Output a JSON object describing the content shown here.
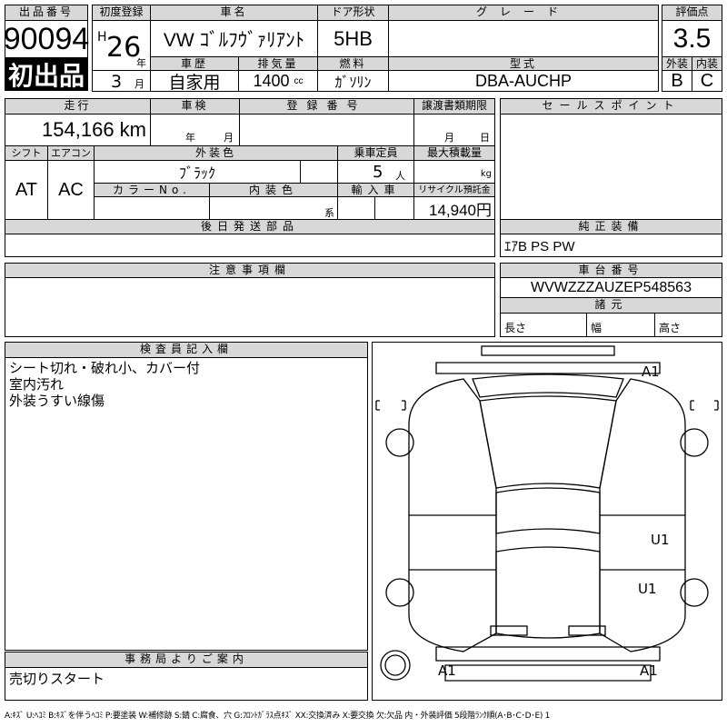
{
  "lot": {
    "label": "出品番号",
    "number": "90094",
    "badge": "初出品"
  },
  "first_reg": {
    "label": "初度登録",
    "era": "H",
    "year": "26",
    "year_unit": "年",
    "month": "3",
    "month_unit": "月"
  },
  "car_name": {
    "label": "車名",
    "value": "VW ｺﾞﾙﾌｳﾞｧﾘｱﾝﾄ"
  },
  "door": {
    "label": "ドア形状",
    "value": "5HB"
  },
  "grade": {
    "label": "グレード",
    "value": ""
  },
  "history": {
    "label": "車歴",
    "value": "自家用"
  },
  "displacement": {
    "label": "排気量",
    "value": "1400",
    "unit": "cc"
  },
  "fuel": {
    "label": "燃料",
    "value": "ｶﾞｿﾘﾝ"
  },
  "model": {
    "label": "型式",
    "value": "DBA-AUCHP"
  },
  "score": {
    "label": "評価点",
    "value": "3.5",
    "exterior_label": "外装",
    "interior_label": "内装",
    "exterior": "B",
    "interior": "C"
  },
  "mileage": {
    "label": "走行",
    "value": "154,166 km"
  },
  "inspection": {
    "label": "車検",
    "year_unit": "年",
    "month_unit": "月"
  },
  "reg_number": {
    "label": "登録番号"
  },
  "transfer": {
    "label": "譲渡書類期限",
    "month_unit": "月",
    "day_unit": "日"
  },
  "shift": {
    "label": "シフト",
    "value": "AT"
  },
  "aircon": {
    "label": "エアコン",
    "value": "AC"
  },
  "ext_color": {
    "label": "外装色",
    "value": "ﾌﾞﾗｯｸ"
  },
  "capacity": {
    "label": "乗車定員",
    "value": "5",
    "unit": "人"
  },
  "max_load": {
    "label": "最大積載量",
    "unit": "kg"
  },
  "color_no": {
    "label": "カラーNo."
  },
  "int_color": {
    "label": "内装色",
    "unit": "系"
  },
  "import": {
    "label": "輸入車"
  },
  "recycle": {
    "label": "リサイクル預託金",
    "value": "14,940円"
  },
  "later_parts": {
    "label": "後日発送部品"
  },
  "sales_point": {
    "label": "セールスポイント"
  },
  "equipment": {
    "label": "純正装備",
    "value": "ｴｱB PS PW"
  },
  "notes": {
    "label": "注意事項欄"
  },
  "chassis": {
    "label": "車台番号",
    "value": "WVWZZZAUZEP548563"
  },
  "specs": {
    "label": "諸元",
    "length": "長さ",
    "width": "幅",
    "height": "高さ"
  },
  "inspector": {
    "label": "検査員記入欄",
    "lines": [
      "シート切れ・破れ小、カバー付",
      "室内汚れ",
      "外装うすい線傷"
    ]
  },
  "office": {
    "label": "事務局よりご案内",
    "value": "売切りスタート"
  },
  "diagram": {
    "marks": [
      "A1",
      "U1",
      "U1",
      "A1",
      "A1"
    ]
  },
  "legend": "A:ｷｽﾞ U:ﾍｺﾐ B:ｷｽﾞを伴うﾍｺﾐ P:要塗装 W:補修跡 S:錆 C:腐食、穴 G:ﾌﾛﾝﾄｶﾞﾗｽ点ｷｽﾞ XX:交換済み X:要交換 欠:欠品 内・外装評価 5段階ﾗﾝｸ順(A･B･C･D･E) 1"
}
